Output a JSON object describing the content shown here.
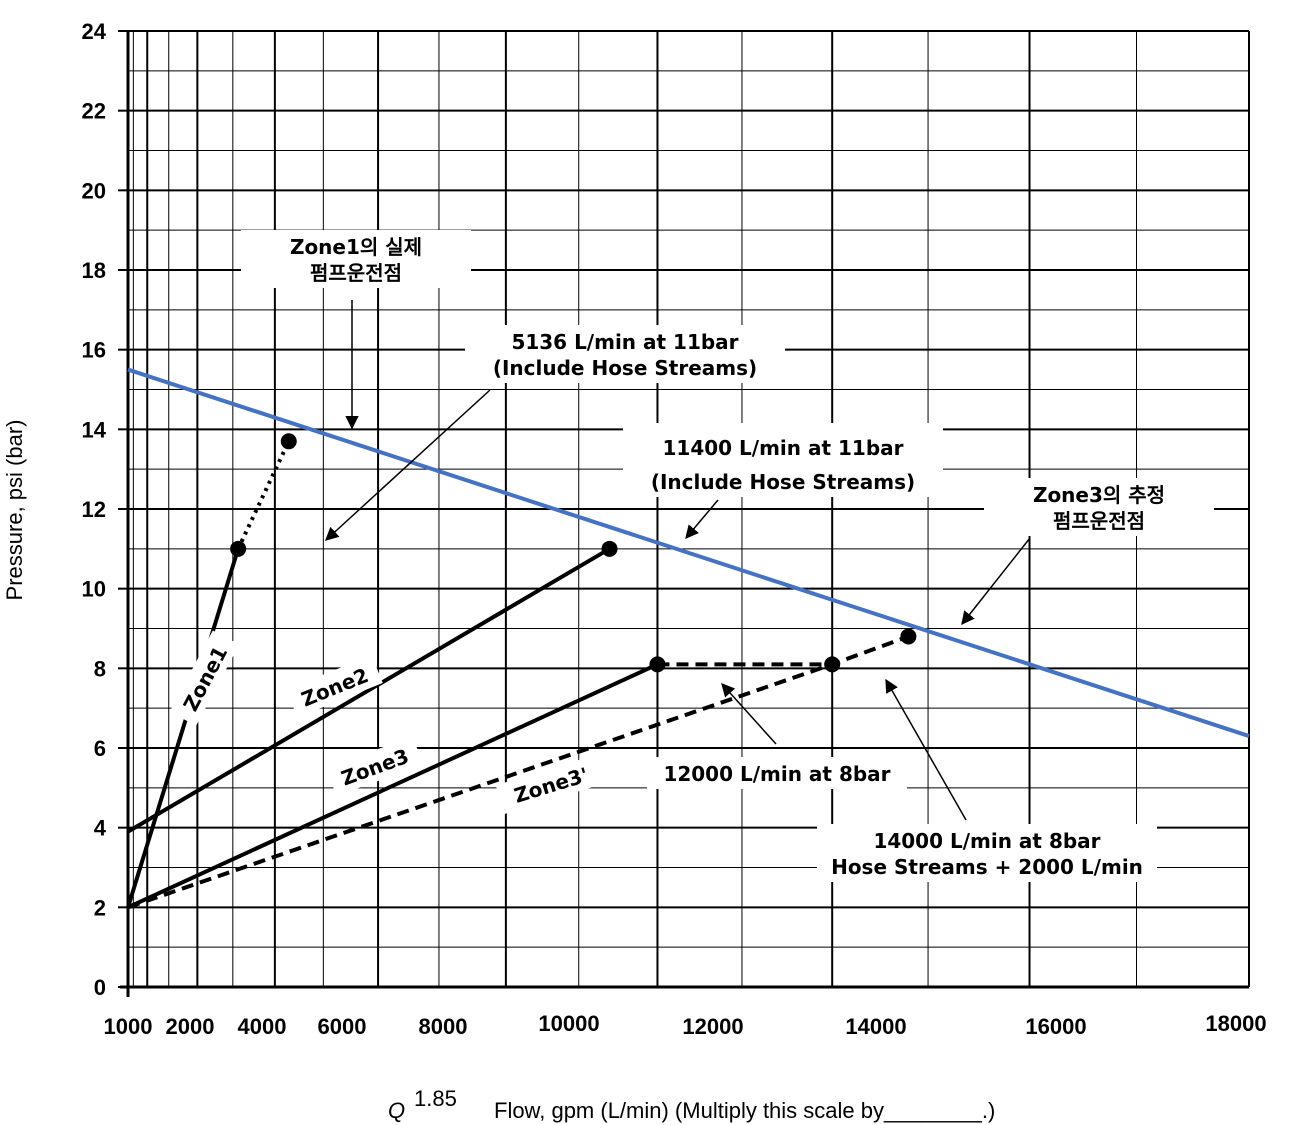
{
  "chart_data": {
    "type": "line",
    "ylabel": "Pressure, psi (bar)",
    "xlabel_q": "Q",
    "xlabel_q_exp": "1.85",
    "xlabel": "Flow, gpm (L/min) (Multiply this scale by________.)",
    "x_ticks": [
      "1000",
      "2000",
      "4000",
      "6000",
      "8000",
      "10000",
      "12000",
      "14000",
      "16000",
      "18000"
    ],
    "y_ticks": [
      "0",
      "2",
      "4",
      "6",
      "8",
      "10",
      "12",
      "14",
      "16",
      "18",
      "20",
      "22",
      "24"
    ],
    "ylim": [
      0,
      24
    ],
    "x_scale": "Q^1.85 (flow raised to power 1.85)",
    "grid": true,
    "series": [
      {
        "name": "",
        "style": "solid",
        "color": "#4472c4",
        "points": [
          [
            0,
            15.5
          ],
          [
            18000,
            6.3
          ]
        ]
      },
      {
        "name": "Zone1",
        "style": "solid",
        "color": "#000000",
        "points": [
          [
            0,
            2
          ],
          [
            5136,
            11
          ]
        ]
      },
      {
        "name": "",
        "style": "dotted",
        "color": "#000000",
        "points": [
          [
            5136,
            11
          ],
          [
            6300,
            13.7
          ]
        ]
      },
      {
        "name": "Zone2",
        "style": "solid",
        "color": "#000000",
        "points": [
          [
            0,
            3.9
          ],
          [
            11400,
            11
          ]
        ]
      },
      {
        "name": "Zone3",
        "style": "solid",
        "color": "#000000",
        "points": [
          [
            0,
            2
          ],
          [
            12000,
            8.1
          ]
        ]
      },
      {
        "name": "",
        "style": "dashed",
        "color": "#000000",
        "points": [
          [
            12000,
            8.1
          ],
          [
            14000,
            8.1
          ]
        ]
      },
      {
        "name": "Zone3'",
        "style": "dashed",
        "color": "#000000",
        "points": [
          [
            0,
            2
          ],
          [
            14000,
            8.1
          ],
          [
            14800,
            8.8
          ]
        ]
      }
    ],
    "points": [
      {
        "x": 5136,
        "y": 11
      },
      {
        "x": 6300,
        "y": 13.7
      },
      {
        "x": 11400,
        "y": 11
      },
      {
        "x": 12000,
        "y": 8.1
      },
      {
        "x": 14000,
        "y": 8.1
      },
      {
        "x": 14800,
        "y": 8.8
      }
    ],
    "annotations": [
      {
        "id": "zone1-op",
        "lines": [
          "Zone1의 실제",
          "펌프운전점"
        ]
      },
      {
        "id": "pt-5136",
        "lines": [
          "5136 L/min at 11bar",
          "(Include Hose Streams)"
        ]
      },
      {
        "id": "pt-11400",
        "lines": [
          "11400 L/min at 11bar",
          "(Include Hose Streams)"
        ]
      },
      {
        "id": "zone3-op",
        "lines": [
          "Zone3의 추정",
          "펌프운전점"
        ]
      },
      {
        "id": "pt-12000",
        "lines": [
          "12000 L/min at 8bar"
        ]
      },
      {
        "id": "pt-14000",
        "lines": [
          "14000 L/min at 8bar",
          "Hose Streams + 2000 L/min"
        ]
      }
    ],
    "zone_labels": [
      "Zone1",
      "Zone2",
      "Zone3",
      "Zone3'"
    ]
  }
}
